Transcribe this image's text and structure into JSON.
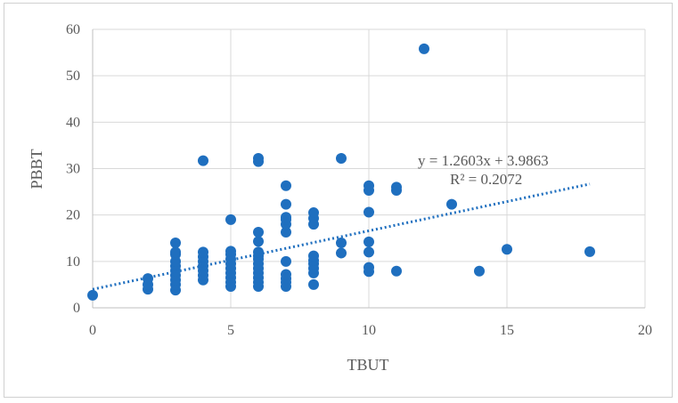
{
  "chart_data": {
    "type": "scatter",
    "title": "",
    "xlabel": "TBUT",
    "ylabel": "PBBT",
    "xlim": [
      0,
      20
    ],
    "ylim": [
      0,
      60
    ],
    "xticks": [
      "0",
      "5",
      "10",
      "15",
      "20"
    ],
    "yticks": [
      "0",
      "10",
      "20",
      "30",
      "40",
      "50",
      "60"
    ],
    "grid": true,
    "legend": "none",
    "marker_color": "#1f6fbf",
    "trendline": {
      "type": "linear",
      "style": "dotted",
      "color": "#1f6fbf",
      "slope": 1.2603,
      "intercept": 3.9863,
      "x_range": [
        0,
        18
      ],
      "equation": "y = 1.2603x + 3.9863",
      "r_squared": "R² = 0.2072"
    },
    "series": [
      {
        "points": [
          [
            0,
            2.7
          ],
          [
            2,
            4
          ],
          [
            2,
            5
          ],
          [
            2,
            6.3
          ],
          [
            3,
            3.8
          ],
          [
            3,
            5
          ],
          [
            3,
            6
          ],
          [
            3,
            7
          ],
          [
            3,
            8
          ],
          [
            3,
            9
          ],
          [
            3,
            10
          ],
          [
            3,
            11.5
          ],
          [
            3,
            12
          ],
          [
            3,
            14
          ],
          [
            4,
            6
          ],
          [
            4,
            7
          ],
          [
            4,
            8
          ],
          [
            4,
            9
          ],
          [
            4,
            10
          ],
          [
            4,
            11
          ],
          [
            4,
            12
          ],
          [
            4,
            31.7
          ],
          [
            5,
            4.6
          ],
          [
            5,
            5.5
          ],
          [
            5,
            6.5
          ],
          [
            5,
            7.5
          ],
          [
            5,
            8.5
          ],
          [
            5,
            9.5
          ],
          [
            5,
            10.5
          ],
          [
            5,
            11.5
          ],
          [
            5,
            12.2
          ],
          [
            5,
            19
          ],
          [
            6,
            4.6
          ],
          [
            6,
            5.5
          ],
          [
            6,
            6.5
          ],
          [
            6,
            7.5
          ],
          [
            6,
            8.5
          ],
          [
            6,
            9.5
          ],
          [
            6,
            10.5
          ],
          [
            6,
            11.2
          ],
          [
            6,
            12
          ],
          [
            6,
            14.3
          ],
          [
            6,
            16.3
          ],
          [
            6,
            31.5
          ],
          [
            6,
            32.2
          ],
          [
            7,
            4.6
          ],
          [
            7,
            5.5
          ],
          [
            7,
            6.3
          ],
          [
            7,
            7.2
          ],
          [
            7,
            10
          ],
          [
            7,
            16.3
          ],
          [
            7,
            18
          ],
          [
            7,
            19
          ],
          [
            7,
            19.5
          ],
          [
            7,
            22.3
          ],
          [
            7,
            26.3
          ],
          [
            8,
            5
          ],
          [
            8,
            7.5
          ],
          [
            8,
            8.5
          ],
          [
            8,
            9.5
          ],
          [
            8,
            10.2
          ],
          [
            8,
            11.2
          ],
          [
            8,
            18
          ],
          [
            8,
            19.3
          ],
          [
            8,
            20.5
          ],
          [
            9,
            11.8
          ],
          [
            9,
            14
          ],
          [
            9,
            32.2
          ],
          [
            10,
            7.8
          ],
          [
            10,
            8.7
          ],
          [
            10,
            12
          ],
          [
            10,
            14.2
          ],
          [
            10,
            20.6
          ],
          [
            10,
            25.3
          ],
          [
            10,
            26.3
          ],
          [
            11,
            7.9
          ],
          [
            11,
            25.3
          ],
          [
            11,
            26
          ],
          [
            12,
            55.8
          ],
          [
            13,
            22.3
          ],
          [
            14,
            7.9
          ],
          [
            15,
            12.6
          ],
          [
            18,
            12.1
          ]
        ]
      }
    ]
  }
}
